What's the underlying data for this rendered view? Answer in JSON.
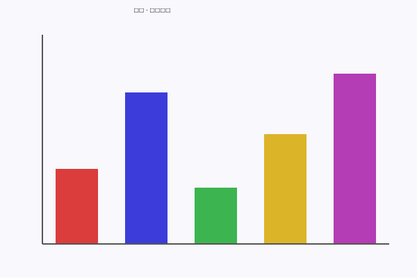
{
  "chart_data": {
    "type": "bar",
    "title": "□□ - □□□□",
    "categories": [
      "",
      "",
      "",
      "",
      ""
    ],
    "values": [
      107,
      217,
      80,
      157,
      244
    ],
    "colors": [
      "#db3c3c",
      "#3c3cdb",
      "#3cb450",
      "#dbb428",
      "#b43cb4"
    ],
    "xlabel": "",
    "ylabel": "",
    "ylim": [
      0,
      300
    ],
    "grid": false,
    "axis_color": "#555555",
    "background": "#f8f8fd"
  }
}
